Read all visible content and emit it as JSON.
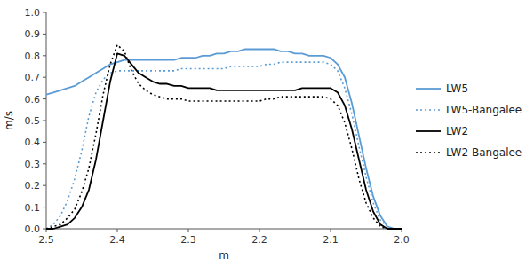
{
  "chart_data": {
    "type": "line",
    "xlabel": "m",
    "ylabel": "m/s",
    "xlim": [
      2.5,
      2.0
    ],
    "ylim": [
      0.0,
      1.0
    ],
    "xticks": [
      2.5,
      2.4,
      2.3,
      2.2,
      2.1,
      {
        "value": 2.0,
        "label": "2.0"
      }
    ],
    "yticks": [
      {
        "value": 0.0,
        "label": "0.0"
      },
      0.1,
      0.2,
      0.3,
      0.4,
      0.5,
      0.6,
      0.7,
      0.8,
      0.9,
      {
        "value": 1.0,
        "label": "1.0"
      }
    ],
    "grid": false,
    "legend": "right",
    "x": [
      2.5,
      2.49,
      2.48,
      2.47,
      2.46,
      2.45,
      2.44,
      2.43,
      2.42,
      2.41,
      2.4,
      2.39,
      2.38,
      2.37,
      2.36,
      2.35,
      2.34,
      2.33,
      2.32,
      2.31,
      2.3,
      2.29,
      2.28,
      2.27,
      2.26,
      2.25,
      2.24,
      2.23,
      2.22,
      2.21,
      2.2,
      2.19,
      2.18,
      2.17,
      2.16,
      2.15,
      2.14,
      2.13,
      2.12,
      2.11,
      2.1,
      2.09,
      2.08,
      2.07,
      2.06,
      2.05,
      2.04,
      2.03,
      2.02,
      2.01,
      2.0
    ],
    "series": [
      {
        "name": "LW5",
        "color": "#5B9BD5",
        "line_style": "solid",
        "values": [
          0.62,
          0.63,
          0.64,
          0.65,
          0.66,
          0.68,
          0.7,
          0.72,
          0.74,
          0.76,
          0.77,
          0.78,
          0.78,
          0.78,
          0.78,
          0.78,
          0.78,
          0.78,
          0.78,
          0.79,
          0.79,
          0.79,
          0.8,
          0.8,
          0.81,
          0.81,
          0.82,
          0.82,
          0.83,
          0.83,
          0.83,
          0.83,
          0.83,
          0.82,
          0.82,
          0.81,
          0.81,
          0.8,
          0.8,
          0.8,
          0.79,
          0.76,
          0.7,
          0.58,
          0.43,
          0.28,
          0.15,
          0.06,
          0.01,
          0.0,
          0.0
        ]
      },
      {
        "name": "LW5-Bangalee",
        "color": "#5B9BD5",
        "line_style": "dotted",
        "values": [
          0.0,
          0.02,
          0.06,
          0.13,
          0.23,
          0.36,
          0.52,
          0.63,
          0.69,
          0.72,
          0.73,
          0.73,
          0.73,
          0.73,
          0.73,
          0.73,
          0.73,
          0.73,
          0.73,
          0.74,
          0.74,
          0.74,
          0.74,
          0.74,
          0.74,
          0.74,
          0.75,
          0.75,
          0.75,
          0.75,
          0.75,
          0.76,
          0.76,
          0.77,
          0.77,
          0.77,
          0.77,
          0.77,
          0.77,
          0.77,
          0.76,
          0.73,
          0.65,
          0.53,
          0.38,
          0.24,
          0.12,
          0.04,
          0.01,
          0.0,
          0.0
        ]
      },
      {
        "name": "LW2",
        "color": "#000000",
        "line_style": "solid",
        "values": [
          0.0,
          0.0,
          0.01,
          0.02,
          0.05,
          0.1,
          0.18,
          0.32,
          0.5,
          0.68,
          0.81,
          0.8,
          0.76,
          0.72,
          0.7,
          0.68,
          0.67,
          0.67,
          0.66,
          0.66,
          0.65,
          0.65,
          0.65,
          0.65,
          0.64,
          0.64,
          0.64,
          0.64,
          0.64,
          0.64,
          0.64,
          0.64,
          0.64,
          0.64,
          0.64,
          0.64,
          0.65,
          0.65,
          0.65,
          0.65,
          0.65,
          0.63,
          0.57,
          0.46,
          0.32,
          0.18,
          0.08,
          0.02,
          0.0,
          0.0,
          0.0
        ]
      },
      {
        "name": "LW2-Bangalee",
        "color": "#000000",
        "line_style": "dotted",
        "values": [
          0.0,
          0.01,
          0.02,
          0.05,
          0.09,
          0.17,
          0.28,
          0.44,
          0.62,
          0.76,
          0.85,
          0.82,
          0.73,
          0.67,
          0.64,
          0.62,
          0.61,
          0.6,
          0.6,
          0.6,
          0.59,
          0.59,
          0.59,
          0.59,
          0.59,
          0.59,
          0.59,
          0.59,
          0.59,
          0.59,
          0.59,
          0.6,
          0.6,
          0.61,
          0.61,
          0.61,
          0.61,
          0.61,
          0.61,
          0.61,
          0.6,
          0.57,
          0.49,
          0.37,
          0.23,
          0.12,
          0.05,
          0.01,
          0.0,
          0.0,
          0.0
        ]
      }
    ]
  }
}
